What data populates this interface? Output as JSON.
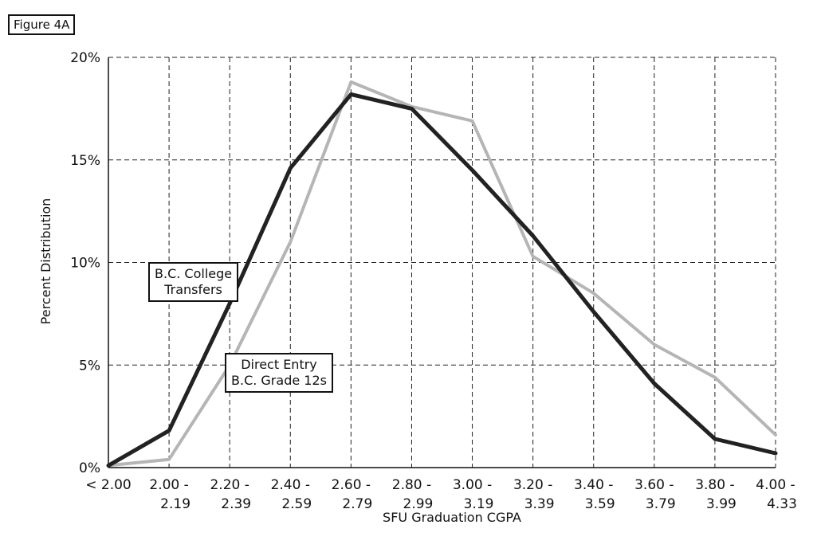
{
  "figure_label": "Figure 4A",
  "annotations": {
    "college": [
      "B.C. College",
      "Transfers"
    ],
    "direct": [
      "Direct Entry",
      "B.C. Grade 12s"
    ]
  },
  "chart_data": {
    "type": "line",
    "title": "",
    "xlabel": "SFU Graduation CGPA",
    "ylabel": "Percent Distribution",
    "ylim": [
      0,
      20
    ],
    "yticks": [
      "0%",
      "5%",
      "10%",
      "15%",
      "20%"
    ],
    "grid": true,
    "categories": [
      [
        "< 2.00",
        ""
      ],
      [
        "2.00 -",
        "2.19"
      ],
      [
        "2.20 -",
        "2.39"
      ],
      [
        "2.40 -",
        "2.59"
      ],
      [
        "2.60 -",
        "2.79"
      ],
      [
        "2.80 -",
        "2.99"
      ],
      [
        "3.00 -",
        "3.19"
      ],
      [
        "3.20 -",
        "3.39"
      ],
      [
        "3.40 -",
        "3.59"
      ],
      [
        "3.60 -",
        "3.79"
      ],
      [
        "3.80 -",
        "3.99"
      ],
      [
        "4.00 -",
        "4.33"
      ]
    ],
    "series": [
      {
        "key": "college",
        "name": "B.C. College Transfers",
        "color": "#222222",
        "values": [
          0.1,
          1.8,
          8.0,
          14.6,
          18.2,
          17.5,
          14.5,
          11.3,
          7.6,
          4.1,
          1.4,
          0.7
        ]
      },
      {
        "key": "direct",
        "name": "Direct Entry B.C. Grade 12s",
        "color": "#b5b5b5",
        "values": [
          0.1,
          0.4,
          5.0,
          11.0,
          18.8,
          17.6,
          16.9,
          10.3,
          8.5,
          6.0,
          4.4,
          1.6
        ]
      }
    ]
  }
}
